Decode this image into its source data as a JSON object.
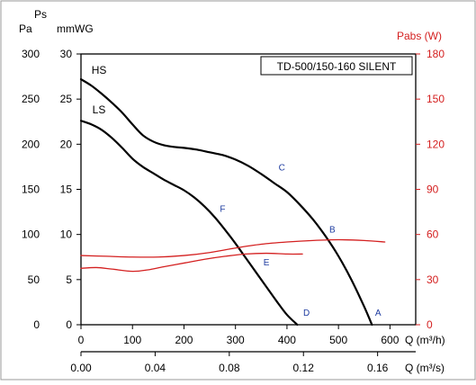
{
  "chart_data": {
    "type": "line",
    "title": "TD-500/150-160 SILENT",
    "left_axis": {
      "label_ps": "Ps",
      "label_pa": "Pa",
      "label_mmwg": "mmWG",
      "pa_ticks": [
        0,
        50,
        100,
        150,
        200,
        250,
        300
      ],
      "mmwg_ticks": [
        0,
        5,
        10,
        15,
        20,
        25,
        30
      ],
      "ylim_pa": [
        0,
        300
      ]
    },
    "right_axis": {
      "label": "Pabs (W)",
      "ticks": [
        0,
        30,
        60,
        90,
        120,
        150,
        180
      ],
      "ylim": [
        0,
        180
      ],
      "color": "#d42020"
    },
    "x_axis_m3h": {
      "label": "Q (m³/h)",
      "ticks": [
        0,
        100,
        200,
        300,
        400,
        500,
        600
      ],
      "xlim": [
        0,
        650
      ]
    },
    "x_axis_m3s": {
      "label": "Q (m³/s)",
      "ticks": [
        "0.00",
        "0.04",
        "0.08",
        "0.12",
        "0.16"
      ],
      "tick_values": [
        0,
        0.04,
        0.08,
        0.12,
        0.16
      ]
    },
    "series": [
      {
        "name": "HS",
        "axis": "pressure",
        "color": "#000000",
        "x": [
          0,
          20,
          40,
          60,
          80,
          100,
          120,
          140,
          160,
          180,
          200,
          225,
          250,
          275,
          300,
          325,
          350,
          375,
          400,
          425,
          450,
          475,
          500,
          525,
          550,
          565
        ],
        "y": [
          272,
          265,
          256,
          246,
          235,
          222,
          210,
          203,
          199,
          197,
          196,
          194,
          191,
          188,
          183,
          176,
          167,
          157,
          147,
          133,
          117,
          98,
          76,
          50,
          20,
          0
        ]
      },
      {
        "name": "LS",
        "axis": "pressure",
        "color": "#000000",
        "x": [
          0,
          20,
          40,
          60,
          80,
          100,
          120,
          140,
          160,
          180,
          200,
          220,
          240,
          260,
          280,
          300,
          320,
          340,
          360,
          380,
          400,
          420
        ],
        "y": [
          226,
          222,
          216,
          207,
          196,
          184,
          175,
          168,
          161,
          155,
          149,
          141,
          131,
          119,
          105,
          90,
          74,
          58,
          42,
          26,
          11,
          0
        ]
      },
      {
        "name": "",
        "axis": "power",
        "color": "#d42020",
        "x": [
          0,
          50,
          100,
          150,
          200,
          250,
          300,
          350,
          400,
          450,
          500,
          550,
          590
        ],
        "y": [
          46,
          45.5,
          45,
          45,
          46,
          48,
          51,
          53.5,
          55,
          56,
          56.5,
          56,
          55
        ]
      },
      {
        "name": "",
        "axis": "power",
        "color": "#d42020",
        "x": [
          0,
          30,
          60,
          100,
          130,
          160,
          200,
          240,
          280,
          320,
          360,
          400,
          430
        ],
        "y": [
          37.5,
          38,
          37,
          35.5,
          36.5,
          38.5,
          41,
          43.5,
          45.5,
          47,
          47.5,
          47,
          47
        ]
      }
    ],
    "curve_labels": [
      {
        "text": "HS",
        "x": 35,
        "y": 278
      },
      {
        "text": "LS",
        "x": 35,
        "y": 234
      }
    ],
    "point_labels": [
      {
        "text": "A",
        "x": 577,
        "y": 10,
        "color": "#1e3ca0"
      },
      {
        "text": "B",
        "x": 488,
        "y": 102,
        "color": "#1e3ca0"
      },
      {
        "text": "C",
        "x": 390,
        "y": 171,
        "color": "#1e3ca0"
      },
      {
        "text": "D",
        "x": 438,
        "y": 10,
        "color": "#1e3ca0"
      },
      {
        "text": "E",
        "x": 360,
        "y": 66,
        "color": "#1e3ca0"
      },
      {
        "text": "F",
        "x": 275,
        "y": 125,
        "color": "#1e3ca0"
      }
    ],
    "grid": false,
    "legend": "top-right"
  }
}
